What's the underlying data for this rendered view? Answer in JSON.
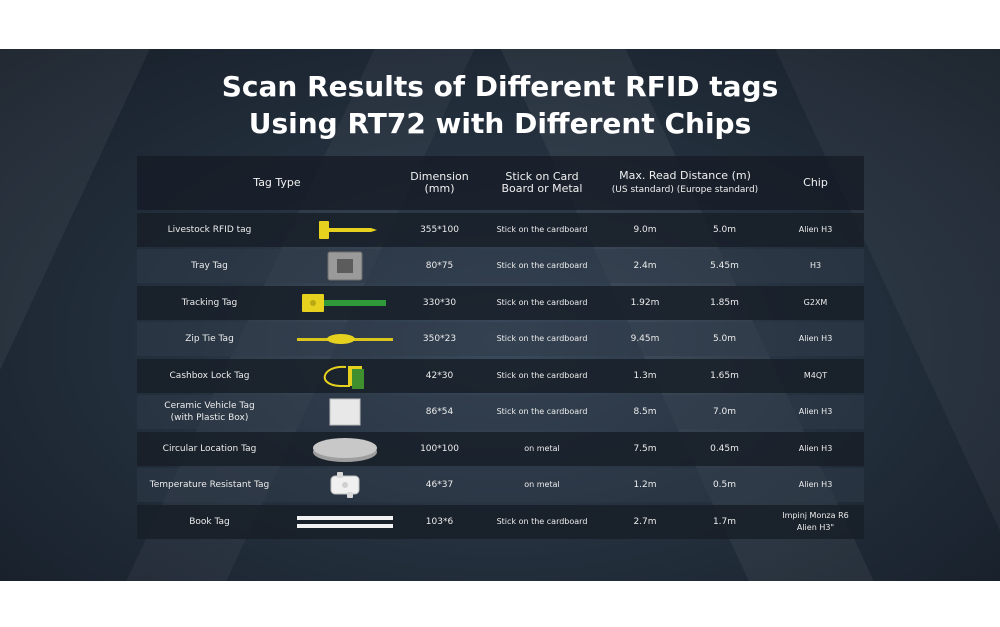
{
  "title": {
    "line1": "Scan Results of Different RFID tags",
    "line2": "Using  RT72 with Different Chips"
  },
  "header": {
    "tag_type": "Tag Type",
    "dimension": "Dimension\n(mm)",
    "stick": "Stick on Card\nBoard or Metal",
    "max_distance": "Max. Read Distance (m)",
    "standards": "(US standard)  (Europe standard)",
    "chip": "Chip"
  },
  "rows": [
    {
      "tag_type": "Livestock RFID tag",
      "icon": "livestock-tag-icon",
      "dimension": "355*100",
      "stick": "Stick on the cardboard",
      "us": "9.0m",
      "eu": "5.0m",
      "chip": "Alien H3"
    },
    {
      "tag_type": "Tray Tag",
      "icon": "tray-tag-icon",
      "dimension": "80*75",
      "stick": "Stick on the cardboard",
      "us": "2.4m",
      "eu": "5.45m",
      "chip": "H3"
    },
    {
      "tag_type": "Tracking Tag",
      "icon": "tracking-tag-icon",
      "dimension": "330*30",
      "stick": "Stick on the cardboard",
      "us": "1.92m",
      "eu": "1.85m",
      "chip": "G2XM"
    },
    {
      "tag_type": "Zip Tie Tag",
      "icon": "zip-tie-tag-icon",
      "dimension": "350*23",
      "stick": "Stick on the cardboard",
      "us": "9.45m",
      "eu": "5.0m",
      "chip": "Alien H3"
    },
    {
      "tag_type": "Cashbox Lock Tag",
      "icon": "cashbox-lock-tag-icon",
      "dimension": "42*30",
      "stick": "Stick on the cardboard",
      "us": "1.3m",
      "eu": "1.65m",
      "chip": "M4QT"
    },
    {
      "tag_type": "Ceramic Vehicle Tag\n(with Plastic Box)",
      "icon": "ceramic-vehicle-tag-icon",
      "dimension": "86*54",
      "stick": "Stick on the cardboard",
      "us": "8.5m",
      "eu": "7.0m",
      "chip": "Alien H3"
    },
    {
      "tag_type": "Circular Location Tag",
      "icon": "circular-location-tag-icon",
      "dimension": "100*100",
      "stick": "on metal",
      "us": "7.5m",
      "eu": "0.45m",
      "chip": "Alien H3"
    },
    {
      "tag_type": "Temperature Resistant Tag",
      "icon": "temperature-resistant-tag-icon",
      "dimension": "46*37",
      "stick": "on metal",
      "us": "1.2m",
      "eu": "0.5m",
      "chip": "Alien H3"
    },
    {
      "tag_type": "Book Tag",
      "icon": "book-tag-icon",
      "dimension": "103*6",
      "stick": "Stick on the cardboard",
      "us": "2.7m",
      "eu": "1.7m",
      "chip": "Impinj Monza R6\nAlien H3\""
    }
  ],
  "colors": {
    "tag_yellow": "#e6d21e",
    "tag_green": "#2e9a3a",
    "tray_gray": "#8c8c8c"
  }
}
